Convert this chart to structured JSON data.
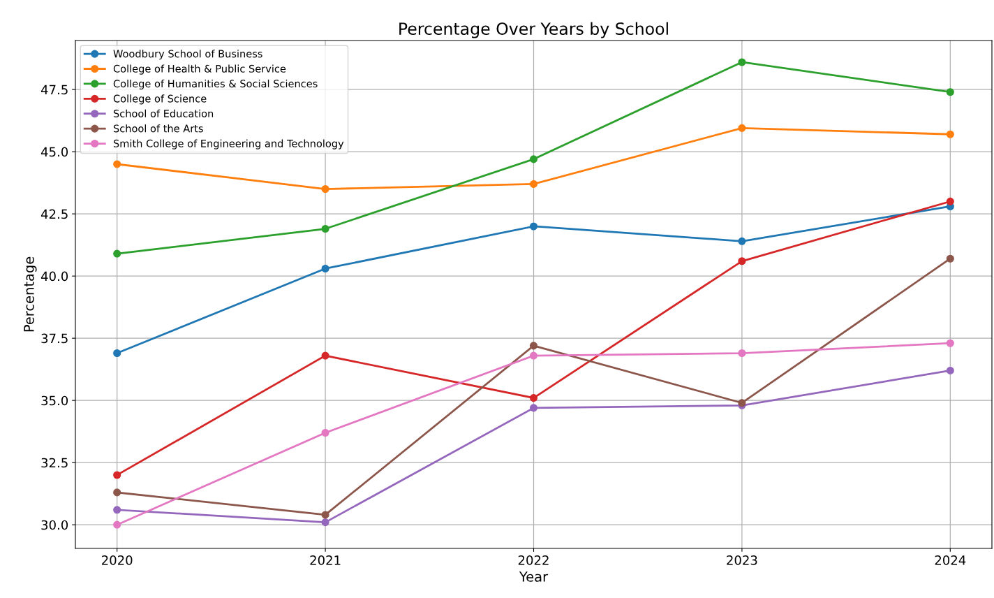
{
  "chart_data": {
    "type": "line",
    "title": "Percentage Over Years by School",
    "xlabel": "Year",
    "ylabel": "Percentage",
    "x": [
      2020,
      2021,
      2022,
      2023,
      2024
    ],
    "series": [
      {
        "name": "Woodbury School of Business",
        "color": "#1f77b4",
        "values": [
          36.9,
          40.3,
          42.0,
          41.4,
          42.8
        ]
      },
      {
        "name": "College of Health & Public Service",
        "color": "#ff7f0e",
        "values": [
          44.5,
          43.5,
          43.7,
          45.95,
          45.7
        ]
      },
      {
        "name": "College of Humanities & Social Sciences",
        "color": "#2ca02c",
        "values": [
          40.9,
          41.9,
          44.7,
          48.6,
          47.4
        ]
      },
      {
        "name": "College of Science",
        "color": "#d62728",
        "values": [
          32.0,
          36.8,
          35.1,
          40.6,
          43.0
        ]
      },
      {
        "name": "School of Education",
        "color": "#9467bd",
        "values": [
          30.6,
          30.1,
          34.7,
          34.8,
          36.2
        ]
      },
      {
        "name": "School of the Arts",
        "color": "#8c564b",
        "values": [
          31.3,
          30.4,
          37.2,
          34.9,
          40.7
        ]
      },
      {
        "name": "Smith College of Engineering and Technology",
        "color": "#e377c2",
        "values": [
          30.0,
          33.7,
          36.8,
          36.9,
          37.3
        ]
      }
    ],
    "xlim": [
      2019.8,
      2024.2
    ],
    "xticks": [
      2020,
      2021,
      2022,
      2023,
      2024
    ],
    "ylim": [
      29.05,
      49.47
    ],
    "yticks": [
      {
        "value": 30,
        "label": "30.0"
      },
      {
        "value": 32.5,
        "label": "32.5"
      },
      {
        "value": 35,
        "label": "35.0"
      },
      {
        "value": 37.5,
        "label": "37.5"
      },
      {
        "value": 40,
        "label": "40.0"
      },
      {
        "value": 42.5,
        "label": "42.5"
      },
      {
        "value": 45,
        "label": "45.0"
      },
      {
        "value": 47.5,
        "label": "47.5"
      }
    ],
    "grid": true,
    "legend": "top left",
    "marker": "circle",
    "line_style": "solid"
  }
}
